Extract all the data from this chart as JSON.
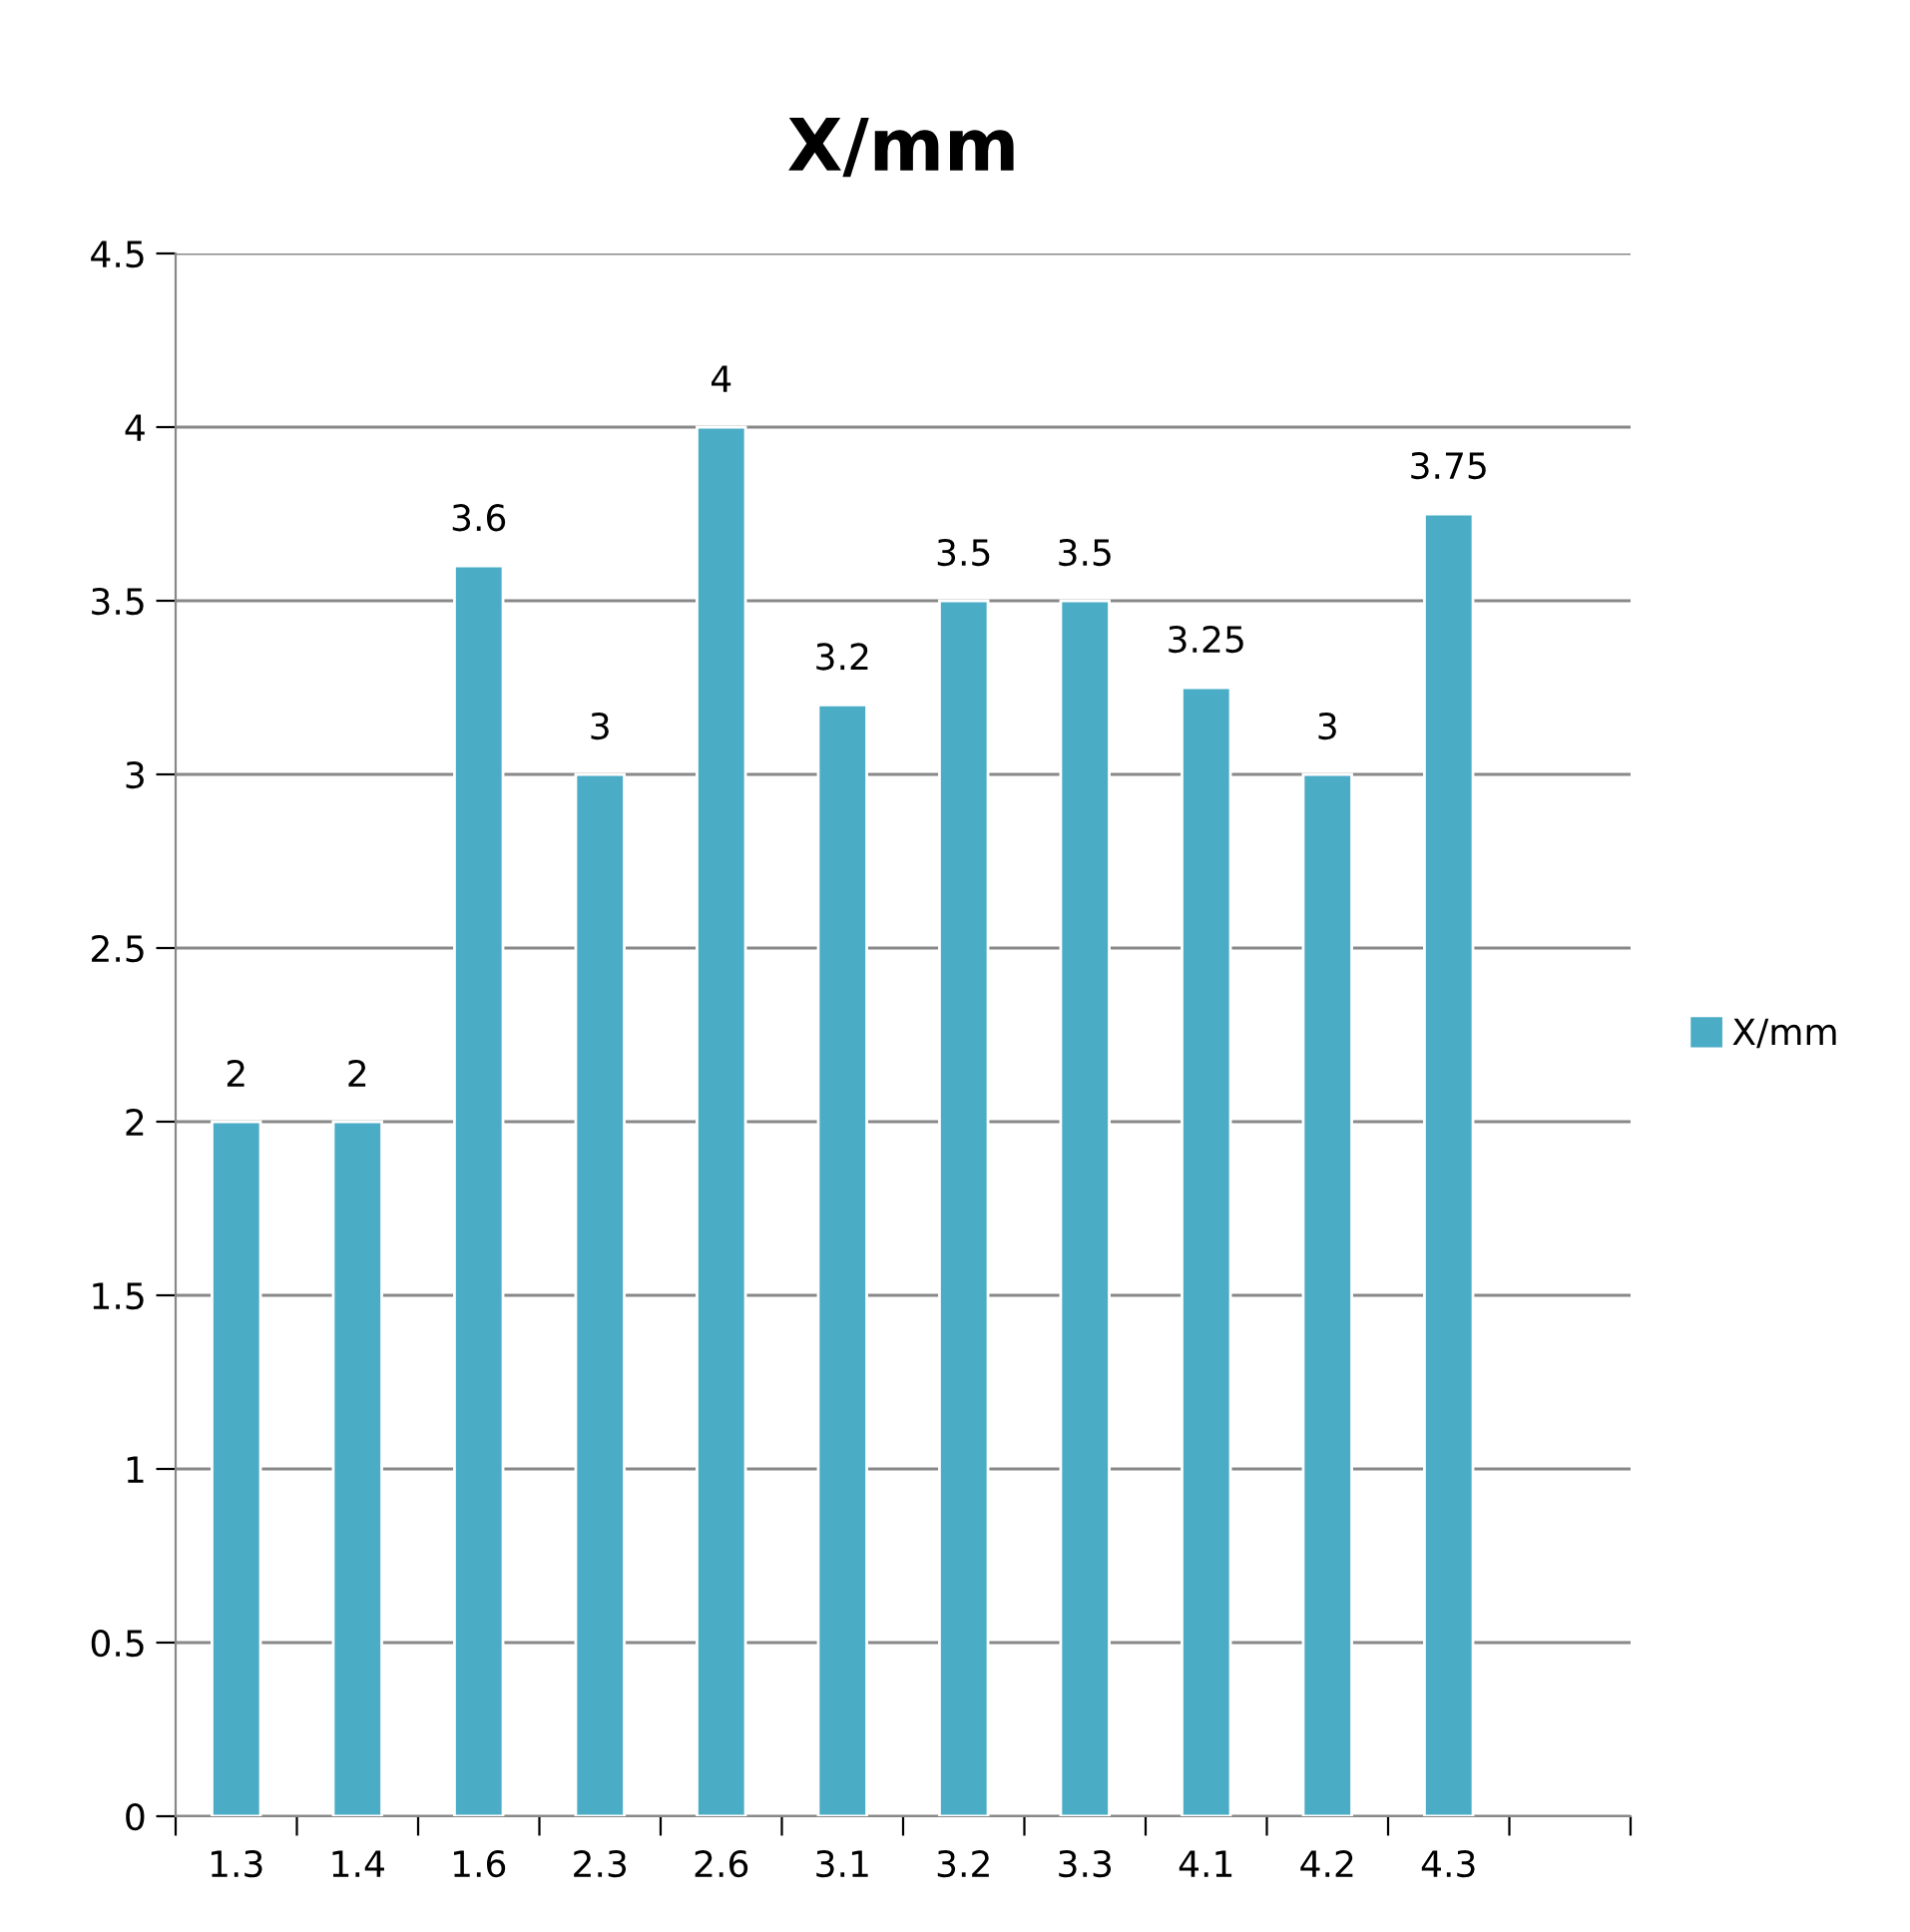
{
  "chart_data": {
    "type": "bar",
    "title": "X/mm",
    "categories": [
      "1.3",
      "1.4",
      "1.6",
      "2.3",
      "2.6",
      "3.1",
      "3.2",
      "3.3",
      "4.1",
      "4.2",
      "4.3",
      null
    ],
    "series": [
      {
        "name": "X/mm",
        "color": "#4bacc6",
        "values": [
          2,
          2,
          3.6,
          3,
          4,
          3.2,
          3.5,
          3.5,
          3.25,
          3,
          3.75,
          null
        ]
      }
    ],
    "ylim": [
      0,
      4.5
    ],
    "yticks": [
      0,
      0.5,
      1,
      1.5,
      2,
      2.5,
      3,
      3.5,
      4,
      4.5
    ],
    "grid": "y",
    "legend": "right",
    "data_labels": true
  }
}
